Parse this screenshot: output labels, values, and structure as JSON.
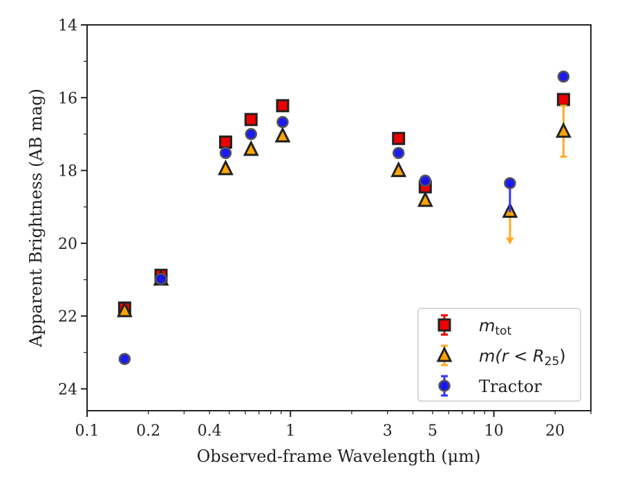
{
  "chart_data": {
    "type": "scatter",
    "title": "",
    "xlabel": "Observed-frame Wavelength (μm)",
    "ylabel": "Apparent Brightness (AB mag)",
    "xscale": "log",
    "yscale": "linear",
    "y_inverted": true,
    "xlim": [
      0.1,
      30
    ],
    "ylim": [
      24.6,
      14
    ],
    "grid": false,
    "legend_position": "lower-right",
    "x_ticks": [
      {
        "value": 0.1,
        "label": "0.1"
      },
      {
        "value": 0.2,
        "label": "0.2"
      },
      {
        "value": 0.4,
        "label": "0.4"
      },
      {
        "value": 1,
        "label": "1"
      },
      {
        "value": 3,
        "label": "3"
      },
      {
        "value": 5,
        "label": "5"
      },
      {
        "value": 10,
        "label": "10"
      },
      {
        "value": 20,
        "label": "20"
      }
    ],
    "y_ticks": [
      {
        "value": 14,
        "label": "14"
      },
      {
        "value": 16,
        "label": "16"
      },
      {
        "value": 18,
        "label": "18"
      },
      {
        "value": 20,
        "label": "20"
      },
      {
        "value": 22,
        "label": "22"
      },
      {
        "value": 24,
        "label": "24"
      }
    ],
    "series": [
      {
        "name": "m_tot",
        "legend_main": "m",
        "legend_sub": "tot",
        "marker": "square",
        "color": "#ee0000",
        "errcolor": "#ee0000",
        "points": [
          {
            "x": 0.153,
            "y": 21.78
          },
          {
            "x": 0.231,
            "y": 20.88
          },
          {
            "x": 0.48,
            "y": 17.22
          },
          {
            "x": 0.64,
            "y": 16.6
          },
          {
            "x": 0.915,
            "y": 16.22
          },
          {
            "x": 3.4,
            "y": 17.12
          },
          {
            "x": 4.6,
            "y": 18.45
          },
          {
            "x": 22,
            "y": 16.05
          }
        ]
      },
      {
        "name": "m(r < R25)",
        "legend_main": "m(r < R",
        "legend_sub": "25",
        "legend_close": ")",
        "marker": "triangle",
        "color": "#ffa500",
        "errcolor": "#ffaa22",
        "points": [
          {
            "x": 0.153,
            "y": 21.85
          },
          {
            "x": 0.231,
            "y": 20.98
          },
          {
            "x": 0.48,
            "y": 17.95
          },
          {
            "x": 0.64,
            "y": 17.42
          },
          {
            "x": 0.915,
            "y": 17.05
          },
          {
            "x": 3.4,
            "y": 18.0
          },
          {
            "x": 4.6,
            "y": 18.82
          },
          {
            "x": 12,
            "y": 19.12,
            "upper_limit": true
          },
          {
            "x": 22,
            "y": 16.92,
            "yerr": 0.7
          }
        ]
      },
      {
        "name": "Tractor",
        "legend_main": "Tractor",
        "marker": "circle",
        "color": "#1010ee",
        "errcolor": "#3333ff",
        "points": [
          {
            "x": 0.153,
            "y": 23.18
          },
          {
            "x": 0.231,
            "y": 20.98
          },
          {
            "x": 0.48,
            "y": 17.52
          },
          {
            "x": 0.64,
            "y": 17.0
          },
          {
            "x": 0.915,
            "y": 16.67
          },
          {
            "x": 3.4,
            "y": 17.52
          },
          {
            "x": 4.6,
            "y": 18.28
          },
          {
            "x": 12,
            "y": 18.35,
            "yerr_down": 0.8
          },
          {
            "x": 22,
            "y": 15.42
          }
        ]
      }
    ]
  }
}
